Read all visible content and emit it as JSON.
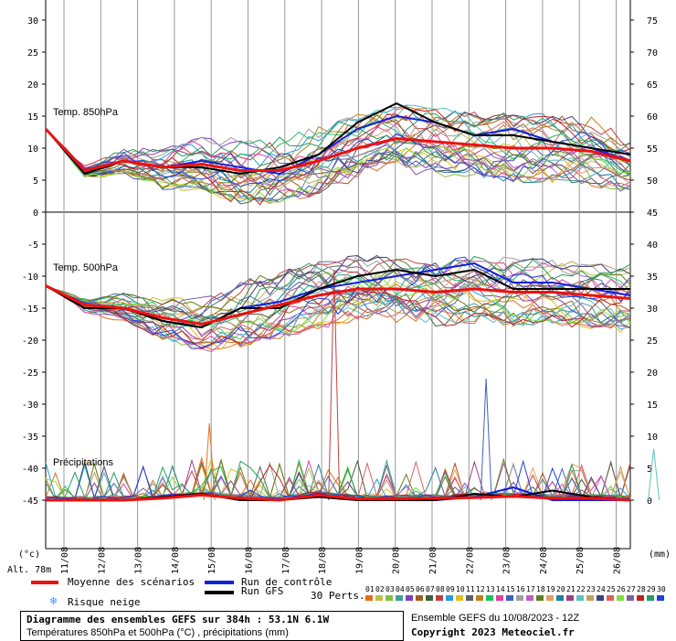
{
  "chart_data": {
    "type": "line",
    "x_ticks": [
      "11/08",
      "12/08",
      "13/08",
      "14/08",
      "15/08",
      "16/08",
      "17/08",
      "18/08",
      "19/08",
      "20/08",
      "21/08",
      "22/08",
      "23/08",
      "24/08",
      "25/08",
      "26/08"
    ],
    "left_axis": {
      "ticks": [
        30,
        25,
        20,
        15,
        10,
        5,
        0,
        -5,
        -10,
        -15,
        -20,
        -25,
        -30,
        -35,
        -40,
        -45
      ],
      "unit": "(°c)"
    },
    "right_axis": {
      "ticks": [
        75,
        70,
        65,
        60,
        55,
        50,
        45,
        40,
        35,
        30,
        25,
        20,
        15,
        10,
        5,
        0
      ],
      "unit": "(mm)"
    },
    "panels": {
      "t850": {
        "label": "Temp. 850hPa",
        "mean": [
          13,
          6.5,
          8,
          7,
          7.5,
          6.5,
          6.5,
          8,
          10,
          11.5,
          11,
          10.5,
          10,
          10,
          9.5,
          8
        ],
        "control": [
          13,
          6,
          8,
          7,
          8,
          7,
          6,
          9,
          13,
          15,
          14,
          12,
          13,
          11,
          10,
          8
        ],
        "gfs": [
          13,
          6,
          8,
          7,
          7,
          6,
          7,
          9,
          14,
          17,
          14,
          12,
          12,
          11,
          10,
          9
        ]
      },
      "t500": {
        "label": "Temp. 500hPa",
        "mean": [
          -11.5,
          -14.5,
          -15,
          -16.5,
          -17.5,
          -16,
          -14.5,
          -13,
          -12,
          -12,
          -12.5,
          -12,
          -12.5,
          -12.5,
          -13,
          -13.5
        ],
        "control": [
          -11.5,
          -15,
          -15,
          -17,
          -18,
          -15,
          -14,
          -12,
          -11,
          -10,
          -9,
          -8,
          -11,
          -11,
          -12,
          -13
        ],
        "gfs": [
          -11.5,
          -15,
          -15,
          -17,
          -18,
          -15,
          -15,
          -12,
          -10,
          -9,
          -10,
          -9,
          -12,
          -12,
          -12,
          -12
        ]
      },
      "precip": {
        "label": "Précipitations",
        "mean": [
          0,
          0,
          0,
          0.3,
          0.8,
          0.3,
          0,
          0.8,
          0.2,
          0.2,
          0.3,
          0.4,
          0.6,
          0.3,
          0.3,
          0
        ],
        "control": [
          0,
          0,
          0,
          0.5,
          1,
          0,
          0,
          1,
          0,
          0,
          0,
          0.5,
          2,
          0,
          0,
          0
        ],
        "gfs": [
          0,
          0,
          0,
          0.5,
          1,
          0,
          0,
          0.5,
          0,
          0,
          0,
          1,
          0.5,
          1.5,
          0.5,
          0
        ],
        "peaks": [
          {
            "x": 4.2,
            "mm": 12
          },
          {
            "x": 7.4,
            "mm": 36
          },
          {
            "x": 11.3,
            "mm": 19
          },
          {
            "x": 15.6,
            "mm": 8
          }
        ]
      }
    },
    "altitude": "Alt. 78m"
  },
  "legend": {
    "mean": "Moyenne des scénarios",
    "control": "Run de contrôle",
    "gfs": "Run GFS",
    "snow": "Risque neige",
    "perts_label": "30 Perts.",
    "perts": [
      "01",
      "02",
      "03",
      "04",
      "05",
      "06",
      "07",
      "08",
      "09",
      "10",
      "11",
      "12",
      "13",
      "14",
      "15",
      "16",
      "17",
      "18",
      "19",
      "20",
      "21",
      "22",
      "23",
      "24",
      "25",
      "26",
      "27",
      "28",
      "29",
      "30"
    ],
    "pert_colors": [
      "#e07020",
      "#c0c040",
      "#80c040",
      "#40a0a0",
      "#8040c0",
      "#a06020",
      "#406040",
      "#c04040",
      "#20a0e0",
      "#e0c020",
      "#606060",
      "#c08020",
      "#20c060",
      "#e040a0",
      "#4060c0",
      "#a0a0a0",
      "#c060c0",
      "#608020",
      "#e0a060",
      "#2080a0",
      "#a04080",
      "#60c0c0",
      "#c0a060",
      "#404080",
      "#e06060",
      "#80e040",
      "#8060a0",
      "#c02020",
      "#20a060",
      "#2040e0"
    ],
    "colors": {
      "mean": "#ee1111",
      "control": "#1122dd",
      "gfs": "#000000"
    }
  },
  "footer": {
    "title": "Diagramme des ensembles GEFS sur 384h : 53.1N 6.1W",
    "subtitle": "Températures 850hPa et 500hPa (°C) , précipitations (mm)",
    "run": "Ensemble GEFS du 10/08/2023 - 12Z",
    "copyright": "Copyright 2023 Meteociel.fr"
  }
}
